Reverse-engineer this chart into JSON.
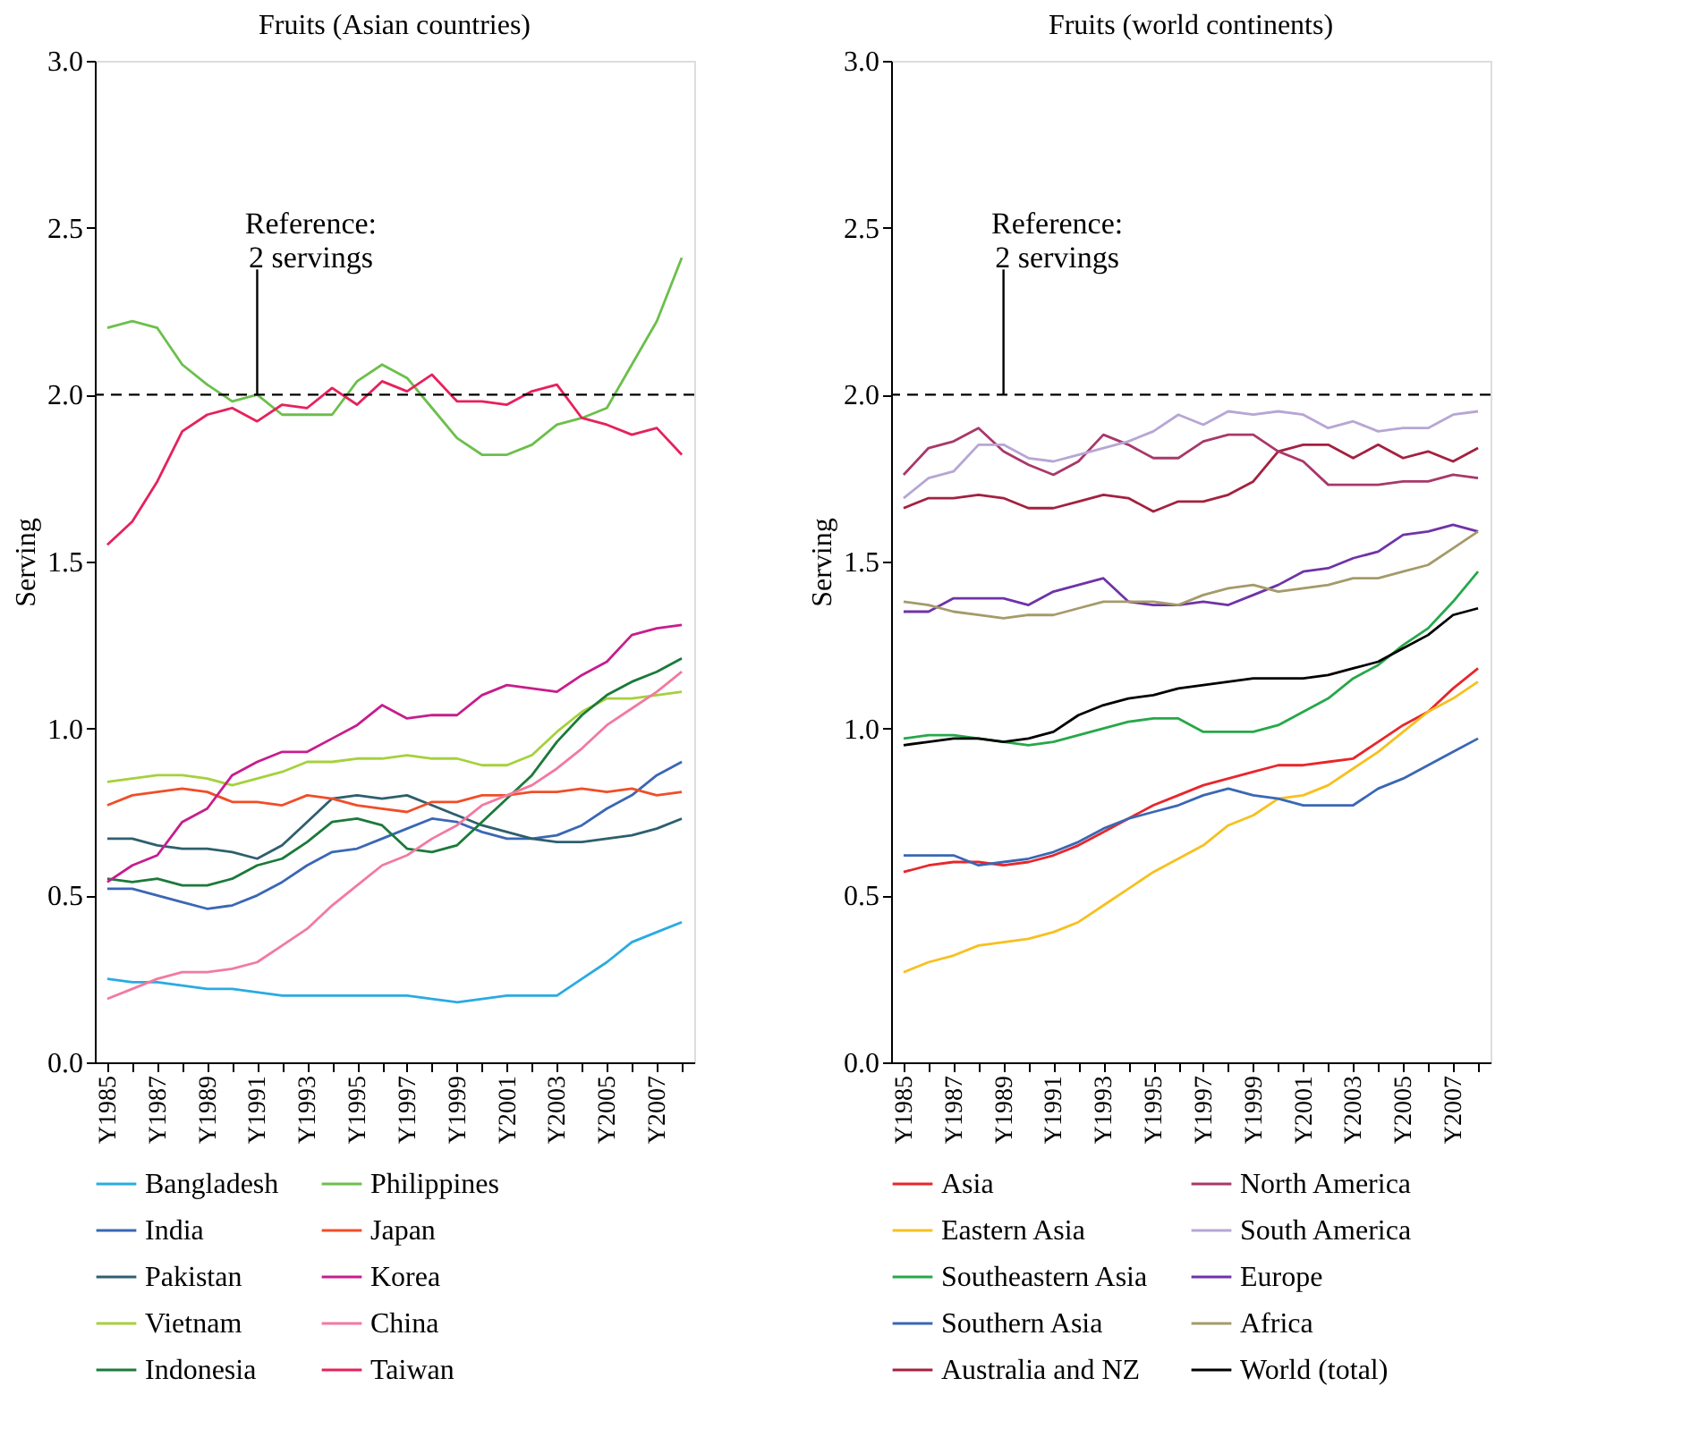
{
  "chart_data": [
    {
      "type": "line",
      "title": "Fruits (Asian countries)",
      "ylabel": "Serving",
      "categories": [
        "Y1985",
        null,
        "Y1987",
        null,
        "Y1989",
        null,
        "Y1991",
        null,
        "Y1993",
        null,
        "Y1995",
        null,
        "Y1997",
        null,
        "Y1999",
        null,
        "Y2001",
        null,
        "Y2003",
        null,
        "Y2005",
        null,
        "Y2007",
        null
      ],
      "series": [
        {
          "name": "Bangladesh",
          "color": "#29abe2",
          "values": [
            0.25,
            0.24,
            0.24,
            0.23,
            0.22,
            0.22,
            0.21,
            0.2,
            0.2,
            0.2,
            0.2,
            0.2,
            0.2,
            0.19,
            0.18,
            0.19,
            0.2,
            0.2,
            0.2,
            0.25,
            0.3,
            0.36,
            0.39,
            0.42
          ]
        },
        {
          "name": "India",
          "color": "#3a67b5",
          "values": [
            0.52,
            0.52,
            0.5,
            0.48,
            0.46,
            0.47,
            0.5,
            0.54,
            0.59,
            0.63,
            0.64,
            0.67,
            0.7,
            0.73,
            0.72,
            0.69,
            0.67,
            0.67,
            0.68,
            0.71,
            0.76,
            0.8,
            0.86,
            0.9
          ]
        },
        {
          "name": "Pakistan",
          "color": "#2e5f6e",
          "values": [
            0.67,
            0.67,
            0.65,
            0.64,
            0.64,
            0.63,
            0.61,
            0.65,
            0.72,
            0.79,
            0.8,
            0.79,
            0.8,
            0.77,
            0.74,
            0.71,
            0.69,
            0.67,
            0.66,
            0.66,
            0.67,
            0.68,
            0.7,
            0.73
          ]
        },
        {
          "name": "Vietnam",
          "color": "#a5d13c",
          "values": [
            0.84,
            0.85,
            0.86,
            0.86,
            0.85,
            0.83,
            0.85,
            0.87,
            0.9,
            0.9,
            0.91,
            0.91,
            0.92,
            0.91,
            0.91,
            0.89,
            0.89,
            0.92,
            0.99,
            1.05,
            1.09,
            1.09,
            1.1,
            1.11
          ]
        },
        {
          "name": "Indonesia",
          "color": "#1b7a3a",
          "values": [
            0.55,
            0.54,
            0.55,
            0.53,
            0.53,
            0.55,
            0.59,
            0.61,
            0.66,
            0.72,
            0.73,
            0.71,
            0.64,
            0.63,
            0.65,
            0.72,
            0.79,
            0.86,
            0.96,
            1.04,
            1.1,
            1.14,
            1.17,
            1.21
          ]
        },
        {
          "name": "Philippines",
          "color": "#6cbf4b",
          "values": [
            2.2,
            2.22,
            2.2,
            2.09,
            2.03,
            1.98,
            2.0,
            1.94,
            1.94,
            1.94,
            2.04,
            2.09,
            2.05,
            1.96,
            1.87,
            1.82,
            1.82,
            1.85,
            1.91,
            1.93,
            1.96,
            2.09,
            2.22,
            2.41
          ]
        },
        {
          "name": "Japan",
          "color": "#f04e28",
          "values": [
            0.77,
            0.8,
            0.81,
            0.82,
            0.81,
            0.78,
            0.78,
            0.77,
            0.8,
            0.79,
            0.77,
            0.76,
            0.75,
            0.78,
            0.78,
            0.8,
            0.8,
            0.81,
            0.81,
            0.82,
            0.81,
            0.82,
            0.8,
            0.81
          ]
        },
        {
          "name": "Korea",
          "color": "#c71d8c",
          "values": [
            0.54,
            0.59,
            0.62,
            0.72,
            0.76,
            0.86,
            0.9,
            0.93,
            0.93,
            0.97,
            1.01,
            1.07,
            1.03,
            1.04,
            1.04,
            1.1,
            1.13,
            1.12,
            1.11,
            1.16,
            1.2,
            1.28,
            1.3,
            1.31
          ]
        },
        {
          "name": "China",
          "color": "#f27aa0",
          "values": [
            0.19,
            0.22,
            0.25,
            0.27,
            0.27,
            0.28,
            0.3,
            0.35,
            0.4,
            0.47,
            0.53,
            0.59,
            0.62,
            0.67,
            0.71,
            0.77,
            0.8,
            0.83,
            0.88,
            0.94,
            1.01,
            1.06,
            1.11,
            1.17
          ]
        },
        {
          "name": "Taiwan",
          "color": "#e6215c",
          "values": [
            1.55,
            1.62,
            1.74,
            1.89,
            1.94,
            1.96,
            1.92,
            1.97,
            1.96,
            2.02,
            1.97,
            2.04,
            2.01,
            2.06,
            1.98,
            1.98,
            1.97,
            2.01,
            2.03,
            1.93,
            1.91,
            1.88,
            1.9,
            1.82
          ]
        }
      ],
      "ylim": [
        0,
        3
      ],
      "yticks": [
        {
          "value": 0,
          "label": "0.0"
        },
        {
          "value": 0.5,
          "label": "0.5"
        },
        {
          "value": 1,
          "label": "1.0"
        },
        {
          "value": 1.5,
          "label": "1.5"
        },
        {
          "value": 2,
          "label": "2.0"
        },
        {
          "value": 2.5,
          "label": "2.5"
        },
        {
          "value": 3,
          "label": "3.0"
        }
      ],
      "grid": false,
      "legend": "bottom",
      "line_style": "solid",
      "marker": "none",
      "ref_lines": [
        {
          "axis": "y",
          "value": 2,
          "line_style": "dashed",
          "color": "#000000"
        }
      ],
      "annotations": [
        {
          "text": "Reference:\n2 servings",
          "x": "Y1991",
          "y": 2
        }
      ]
    },
    {
      "type": "line",
      "title": "Fruits (world continents)",
      "ylabel": "Serving",
      "categories": [
        "Y1985",
        null,
        "Y1987",
        null,
        "Y1989",
        null,
        "Y1991",
        null,
        "Y1993",
        null,
        "Y1995",
        null,
        "Y1997",
        null,
        "Y1999",
        null,
        "Y2001",
        null,
        "Y2003",
        null,
        "Y2005",
        null,
        "Y2007",
        null
      ],
      "series": [
        {
          "name": "Asia",
          "color": "#e8262b",
          "values": [
            0.57,
            0.59,
            0.6,
            0.6,
            0.59,
            0.6,
            0.62,
            0.65,
            0.69,
            0.73,
            0.77,
            0.8,
            0.83,
            0.85,
            0.87,
            0.89,
            0.89,
            0.9,
            0.91,
            0.96,
            1.01,
            1.05,
            1.12,
            1.18
          ]
        },
        {
          "name": "Eastern Asia",
          "color": "#f7c01f",
          "values": [
            0.27,
            0.3,
            0.32,
            0.35,
            0.36,
            0.37,
            0.39,
            0.42,
            0.47,
            0.52,
            0.57,
            0.61,
            0.65,
            0.71,
            0.74,
            0.79,
            0.8,
            0.83,
            0.88,
            0.93,
            0.99,
            1.05,
            1.09,
            1.14
          ]
        },
        {
          "name": "Southeastern Asia",
          "color": "#26a84a",
          "values": [
            0.97,
            0.98,
            0.98,
            0.97,
            0.96,
            0.95,
            0.96,
            0.98,
            1.0,
            1.02,
            1.03,
            1.03,
            0.99,
            0.99,
            0.99,
            1.01,
            1.05,
            1.09,
            1.15,
            1.19,
            1.25,
            1.3,
            1.38,
            1.47
          ]
        },
        {
          "name": "Southern Asia",
          "color": "#3a67b5",
          "values": [
            0.62,
            0.62,
            0.62,
            0.59,
            0.6,
            0.61,
            0.63,
            0.66,
            0.7,
            0.73,
            0.75,
            0.77,
            0.8,
            0.82,
            0.8,
            0.79,
            0.77,
            0.77,
            0.77,
            0.82,
            0.85,
            0.89,
            0.93,
            0.97
          ]
        },
        {
          "name": "Australia and NZ",
          "color": "#a3213f",
          "values": [
            1.66,
            1.69,
            1.69,
            1.7,
            1.69,
            1.66,
            1.66,
            1.68,
            1.7,
            1.69,
            1.65,
            1.68,
            1.68,
            1.7,
            1.74,
            1.83,
            1.85,
            1.85,
            1.81,
            1.85,
            1.81,
            1.83,
            1.8,
            1.84
          ]
        },
        {
          "name": "North America",
          "color": "#a8386a",
          "values": [
            1.76,
            1.84,
            1.86,
            1.9,
            1.83,
            1.79,
            1.76,
            1.8,
            1.88,
            1.85,
            1.81,
            1.81,
            1.86,
            1.88,
            1.88,
            1.83,
            1.8,
            1.73,
            1.73,
            1.73,
            1.74,
            1.74,
            1.76,
            1.75
          ]
        },
        {
          "name": "South America",
          "color": "#b7a6d4",
          "values": [
            1.69,
            1.75,
            1.77,
            1.85,
            1.85,
            1.81,
            1.8,
            1.82,
            1.84,
            1.86,
            1.89,
            1.94,
            1.91,
            1.95,
            1.94,
            1.95,
            1.94,
            1.9,
            1.92,
            1.89,
            1.9,
            1.9,
            1.94,
            1.95
          ]
        },
        {
          "name": "Europe",
          "color": "#6f33a8",
          "values": [
            1.35,
            1.35,
            1.39,
            1.39,
            1.39,
            1.37,
            1.41,
            1.43,
            1.45,
            1.38,
            1.37,
            1.37,
            1.38,
            1.37,
            1.4,
            1.43,
            1.47,
            1.48,
            1.51,
            1.53,
            1.58,
            1.59,
            1.61,
            1.59
          ]
        },
        {
          "name": "Africa",
          "color": "#a59a6a",
          "values": [
            1.38,
            1.37,
            1.35,
            1.34,
            1.33,
            1.34,
            1.34,
            1.36,
            1.38,
            1.38,
            1.38,
            1.37,
            1.4,
            1.42,
            1.43,
            1.41,
            1.42,
            1.43,
            1.45,
            1.45,
            1.47,
            1.49,
            1.54,
            1.59
          ]
        },
        {
          "name": "World (total)",
          "color": "#000000",
          "values": [
            0.95,
            0.96,
            0.97,
            0.97,
            0.96,
            0.97,
            0.99,
            1.04,
            1.07,
            1.09,
            1.1,
            1.12,
            1.13,
            1.14,
            1.15,
            1.15,
            1.15,
            1.16,
            1.18,
            1.2,
            1.24,
            1.28,
            1.34,
            1.36
          ]
        }
      ],
      "ylim": [
        0,
        3
      ],
      "yticks": [
        {
          "value": 0,
          "label": "0.0"
        },
        {
          "value": 0.5,
          "label": "0.5"
        },
        {
          "value": 1,
          "label": "1.0"
        },
        {
          "value": 1.5,
          "label": "1.5"
        },
        {
          "value": 2,
          "label": "2.0"
        },
        {
          "value": 2.5,
          "label": "2.5"
        },
        {
          "value": 3,
          "label": "3.0"
        }
      ],
      "grid": false,
      "legend": "bottom",
      "line_style": "solid",
      "marker": "none",
      "ref_lines": [
        {
          "axis": "y",
          "value": 2,
          "line_style": "dashed",
          "color": "#000000"
        }
      ],
      "annotations": [
        {
          "text": "Reference:\n2 servings",
          "x": "Y1989",
          "y": 2
        }
      ]
    }
  ]
}
